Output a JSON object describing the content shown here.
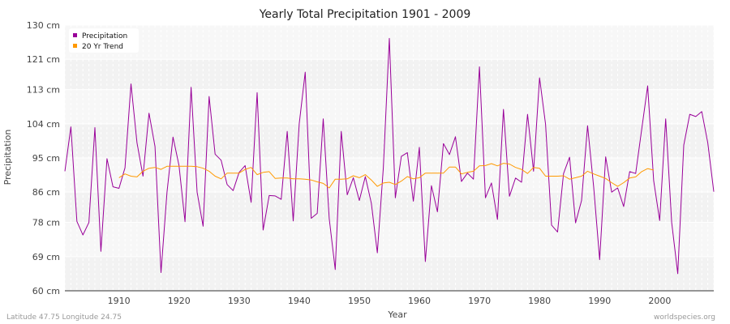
{
  "chart_data": {
    "type": "line",
    "title": "Yearly Total Precipitation 1901 - 2009",
    "xlabel": "Year",
    "ylabel": "Precipitation",
    "xlim": [
      1901,
      2009
    ],
    "ylim": [
      60,
      130
    ],
    "x_ticks": [
      1910,
      1920,
      1930,
      1940,
      1950,
      1960,
      1970,
      1980,
      1990,
      2000
    ],
    "y_ticks": [
      60,
      69,
      78,
      86,
      95,
      104,
      113,
      121,
      130
    ],
    "y_tick_labels": [
      "60 cm",
      "69 cm",
      "78 cm",
      "86 cm",
      "95 cm",
      "104 cm",
      "113 cm",
      "121 cm",
      "130 cm"
    ],
    "grid": true,
    "legend_position": "top-left",
    "series": [
      {
        "name": "Precipitation",
        "color": "#990099",
        "x": [
          1901,
          1902,
          1903,
          1904,
          1905,
          1906,
          1907,
          1908,
          1909,
          1910,
          1911,
          1912,
          1913,
          1914,
          1915,
          1916,
          1917,
          1918,
          1919,
          1920,
          1921,
          1922,
          1923,
          1924,
          1925,
          1926,
          1927,
          1928,
          1929,
          1930,
          1931,
          1932,
          1933,
          1934,
          1935,
          1936,
          1937,
          1938,
          1939,
          1940,
          1941,
          1942,
          1943,
          1944,
          1945,
          1946,
          1947,
          1948,
          1949,
          1950,
          1951,
          1952,
          1953,
          1954,
          1955,
          1956,
          1957,
          1958,
          1959,
          1960,
          1961,
          1962,
          1963,
          1964,
          1965,
          1966,
          1967,
          1968,
          1969,
          1970,
          1971,
          1972,
          1973,
          1974,
          1975,
          1976,
          1977,
          1978,
          1979,
          1980,
          1981,
          1982,
          1983,
          1984,
          1985,
          1986,
          1987,
          1988,
          1989,
          1990,
          1991,
          1992,
          1993,
          1994,
          1995,
          1996,
          1997,
          1998,
          1999,
          2000,
          2001,
          2002,
          2003,
          2004,
          2005,
          2006,
          2007,
          2008,
          2009
        ],
        "values": [
          91.5,
          103.2,
          78.3,
          74.7,
          78.0,
          103.0,
          70.4,
          94.8,
          87.4,
          87.0,
          92.4,
          114.5,
          99.0,
          90.2,
          106.8,
          98.0,
          64.8,
          86.0,
          100.5,
          93.0,
          78.2,
          113.6,
          86.0,
          77.0,
          111.2,
          96.0,
          94.4,
          88.0,
          86.4,
          91.2,
          93.0,
          83.3,
          112.2,
          76.0,
          85.1,
          85.0,
          84.1,
          102.0,
          78.4,
          104.0,
          117.6,
          79.1,
          80.4,
          105.3,
          79.0,
          65.6,
          102.0,
          85.3,
          89.8,
          83.8,
          90.1,
          83.1,
          70.0,
          92.4,
          126.5,
          84.5,
          95.4,
          96.4,
          83.6,
          97.8,
          67.7,
          87.7,
          80.8,
          98.8,
          95.9,
          100.6,
          88.8,
          91.0,
          89.4,
          119.0,
          84.5,
          88.4,
          78.8,
          107.8,
          84.9,
          89.7,
          88.6,
          106.5,
          91.5,
          116.1,
          103.9,
          77.3,
          75.5,
          90.9,
          95.2,
          77.9,
          83.8,
          103.5,
          87.4,
          68.2,
          95.3,
          86.0,
          87.1,
          82.2,
          91.4,
          90.9,
          102.5,
          114.0,
          89.0,
          78.5,
          105.3,
          78.0,
          64.5,
          98.4,
          106.5,
          105.9,
          107.2,
          99.0,
          86.1
        ]
      },
      {
        "name": "20 Yr Trend",
        "color": "#ff9900",
        "x": [
          1910,
          1911,
          1912,
          1913,
          1914,
          1915,
          1916,
          1917,
          1918,
          1919,
          1920,
          1921,
          1922,
          1923,
          1924,
          1925,
          1926,
          1927,
          1928,
          1929,
          1930,
          1931,
          1932,
          1933,
          1934,
          1935,
          1936,
          1937,
          1938,
          1939,
          1940,
          1941,
          1942,
          1943,
          1944,
          1945,
          1946,
          1947,
          1948,
          1949,
          1950,
          1951,
          1952,
          1953,
          1954,
          1955,
          1956,
          1957,
          1958,
          1959,
          1960,
          1961,
          1962,
          1963,
          1964,
          1965,
          1966,
          1967,
          1968,
          1969,
          1970,
          1971,
          1972,
          1973,
          1974,
          1975,
          1976,
          1977,
          1978,
          1979,
          1980,
          1981,
          1982,
          1983,
          1984,
          1985,
          1986,
          1987,
          1988,
          1989,
          1990,
          1991,
          1992,
          1993,
          1994,
          1995,
          1996,
          1997,
          1998,
          1999
        ],
        "values": [
          89.8,
          90.8,
          90.2,
          90.0,
          91.5,
          92.3,
          92.5,
          92.0,
          92.8,
          92.8,
          92.8,
          92.8,
          92.8,
          92.7,
          92.3,
          91.5,
          90.2,
          89.5,
          91.0,
          91.0,
          91.0,
          92.0,
          92.5,
          90.6,
          91.2,
          91.4,
          89.6,
          89.7,
          89.7,
          89.5,
          89.5,
          89.4,
          89.2,
          88.7,
          88.3,
          87.1,
          89.4,
          89.4,
          89.5,
          90.3,
          89.8,
          90.6,
          89.2,
          87.5,
          88.4,
          88.6,
          88.0,
          88.9,
          90.1,
          89.5,
          89.8,
          91.0,
          91.0,
          91.0,
          91.0,
          92.6,
          92.6,
          90.8,
          91.2,
          91.5,
          92.9,
          93.0,
          93.5,
          92.9,
          93.6,
          93.4,
          92.5,
          92.0,
          90.9,
          92.5,
          92.3,
          90.2,
          90.2,
          90.2,
          90.3,
          89.4,
          89.8,
          90.2,
          91.5,
          90.8,
          90.2,
          89.6,
          88.5,
          87.5,
          88.5,
          89.7,
          90.0,
          91.4,
          92.2,
          91.8
        ]
      }
    ]
  },
  "footer": {
    "left": "Latitude 47.75 Longitude 24.75",
    "right": "worldspecies.org"
  }
}
